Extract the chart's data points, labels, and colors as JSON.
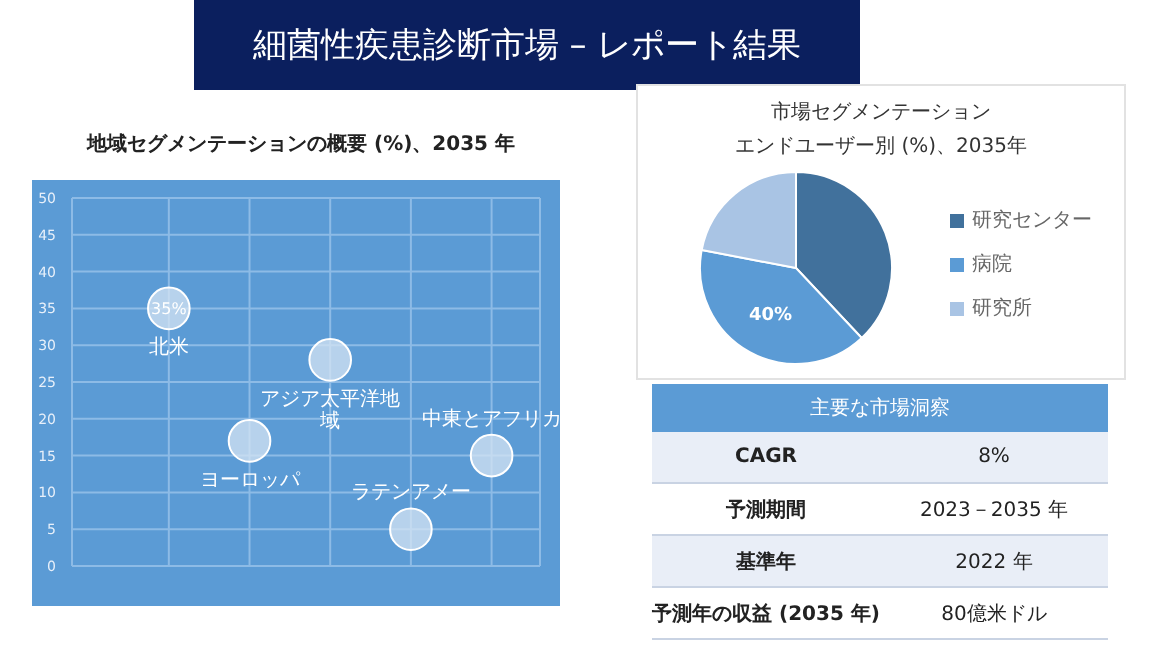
{
  "chart_data": [
    {
      "type": "other",
      "title": "細菌性疾患診断市場 – レポート結果"
    },
    {
      "type": "bubble",
      "title": "地域セグメンテーションの概要 (%)、2035 年",
      "categories": [
        "北米",
        "ヨーロッパ",
        "アジア太平洋地域",
        "ラテンアメー",
        "中東とアフリカ"
      ],
      "values": [
        35,
        17,
        28,
        5,
        15
      ],
      "sizes": [
        1,
        1,
        1,
        1,
        1
      ],
      "color": "#d6e4f3",
      "value_labels": [
        "35%",
        null,
        null,
        null,
        null
      ],
      "ylim": [
        0,
        50
      ],
      "yticks": [
        0,
        5,
        10,
        15,
        20,
        25,
        30,
        35,
        40,
        45,
        50
      ],
      "grid": true,
      "tick_labels": "y"
    },
    {
      "type": "pie",
      "title": "市場セグメンテーション",
      "subtitle": "エンドユーザー別 (%)、2035年",
      "categories": [
        "研究センター",
        "病院",
        "研究所"
      ],
      "values": [
        38,
        40,
        22
      ],
      "colors": [
        "#41719c",
        "#5b9bd5",
        "#a9c4e4"
      ],
      "value_labels": [
        null,
        "40%",
        null
      ],
      "legend": "right"
    },
    {
      "type": "other",
      "title": "主要な市場洞察",
      "annotations": [
        "CAGR",
        "8%",
        "予測期間",
        "2023－2035 年",
        "基準年",
        "2022 年",
        "予測年の収益 (2035 年)",
        "80億米ドル"
      ]
    }
  ]
}
